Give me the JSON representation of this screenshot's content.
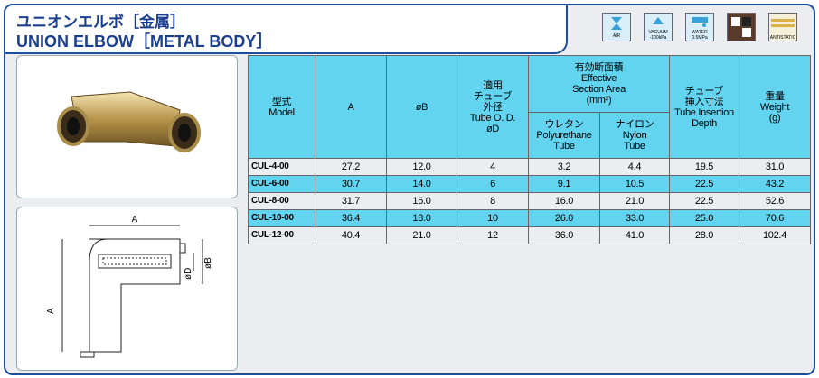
{
  "header": {
    "title_ja": "ユニオンエルボ［金属］",
    "title_en": "UNION ELBOW［METAL BODY］"
  },
  "icons": [
    "AIR",
    "VACUUM",
    "-100kPa",
    "WATER",
    "0.5MPa",
    "ANTISTATIC"
  ],
  "diagram": {
    "labels": [
      "A",
      "øD",
      "øB",
      "A"
    ]
  },
  "table": {
    "columns": [
      [
        "型式",
        "Model"
      ],
      [
        "A"
      ],
      [
        "øB"
      ],
      [
        "適用",
        "チューブ",
        "外径",
        "Tube O. D.",
        "øD"
      ],
      [
        "有効断面積",
        "Effective",
        "Section Area",
        "(mm²)"
      ],
      [
        "チューブ",
        "挿入寸法",
        "Tube Insertion",
        "Depth"
      ],
      [
        "重量",
        "Weight",
        "(g)"
      ]
    ],
    "subcolumns": [
      [
        "ウレタン",
        "Polyurethane",
        "Tube"
      ],
      [
        "ナイロン",
        "Nylon",
        "Tube"
      ]
    ],
    "rows": [
      [
        "CUL-4-00",
        "27.2",
        "12.0",
        "4",
        "3.2",
        "4.4",
        "19.5",
        "31.0"
      ],
      [
        "CUL-6-00",
        "30.7",
        "14.0",
        "6",
        "9.1",
        "10.5",
        "22.5",
        "43.2"
      ],
      [
        "CUL-8-00",
        "31.7",
        "16.0",
        "8",
        "16.0",
        "21.0",
        "22.5",
        "52.6"
      ],
      [
        "CUL-10-00",
        "36.4",
        "18.0",
        "10",
        "26.0",
        "33.0",
        "25.0",
        "70.6"
      ],
      [
        "CUL-12-00",
        "40.4",
        "21.0",
        "12",
        "36.0",
        "41.0",
        "28.0",
        "102.4"
      ]
    ]
  }
}
